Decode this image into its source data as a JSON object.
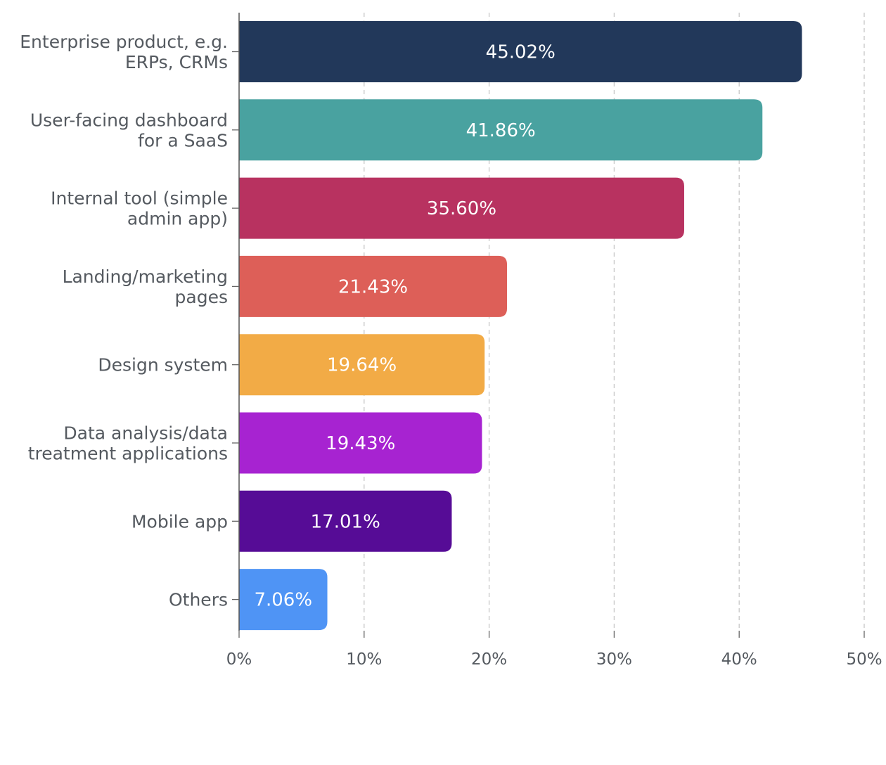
{
  "chart_data": {
    "type": "bar",
    "orientation": "horizontal",
    "categories": [
      [
        "Enterprise product, e.g.",
        "ERPs, CRMs"
      ],
      [
        "User-facing dashboard",
        "for a SaaS"
      ],
      [
        "Internal tool (simple",
        "admin app)"
      ],
      [
        "Landing/marketing",
        "pages"
      ],
      [
        "Design system"
      ],
      [
        "Data analysis/data",
        "treatment applications"
      ],
      [
        "Mobile app"
      ],
      [
        "Others"
      ]
    ],
    "values": [
      45.02,
      41.86,
      35.6,
      21.43,
      19.64,
      19.43,
      17.01,
      7.06
    ],
    "data_labels": [
      "45.02%",
      "41.86%",
      "35.60%",
      "21.43%",
      "19.64%",
      "19.43%",
      "17.01%",
      "7.06%"
    ],
    "colors": [
      "#22385a",
      "#49a2a0",
      "#b83260",
      "#dd5f58",
      "#f2ab46",
      "#a723d1",
      "#560c96",
      "#4f94f5"
    ],
    "xlim": [
      0,
      50
    ],
    "x_ticks": [
      0,
      10,
      20,
      30,
      40,
      50
    ],
    "x_tick_labels": [
      "0%",
      "10%",
      "20%",
      "30%",
      "40%",
      "50%"
    ],
    "title": "",
    "xlabel": "",
    "ylabel": "",
    "grid": "vertical-dashed",
    "legend": "none"
  }
}
